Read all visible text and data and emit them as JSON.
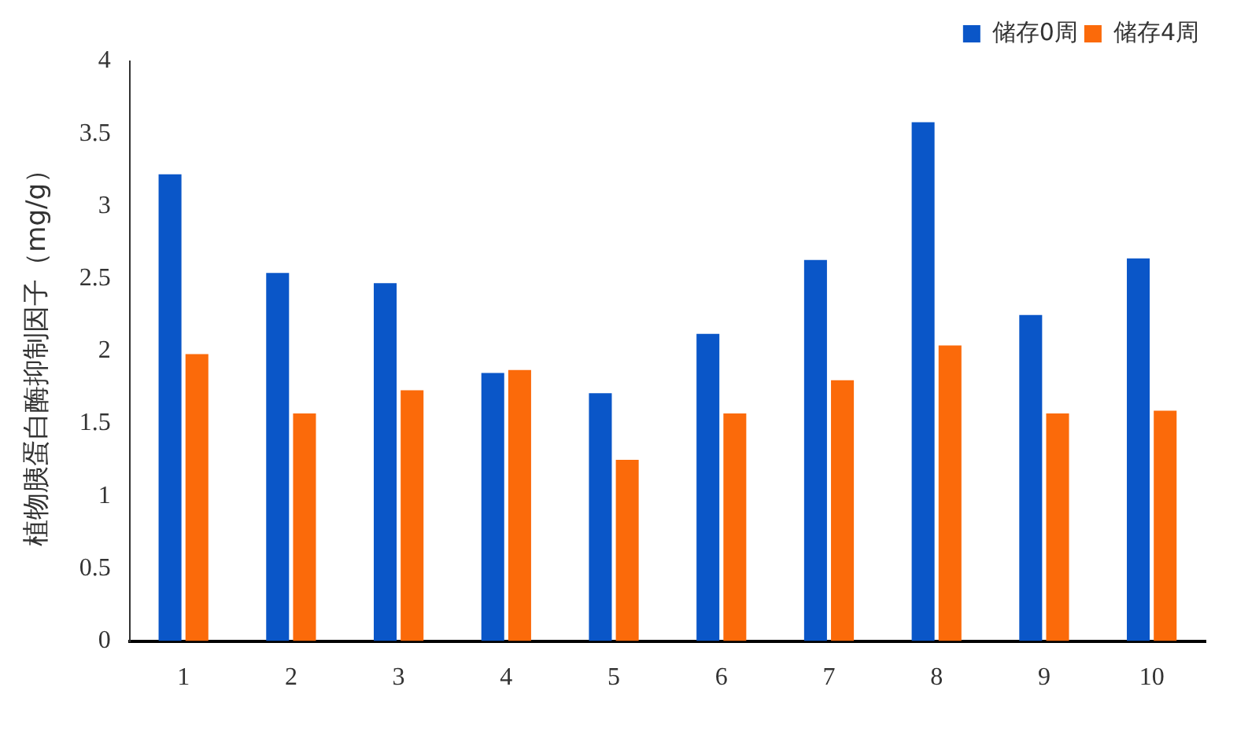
{
  "chart_data": {
    "type": "bar",
    "ylabel": "植物胰蛋白酶抑制因子（mg/g）",
    "categories": [
      "1",
      "2",
      "3",
      "4",
      "5",
      "6",
      "7",
      "8",
      "9",
      "10"
    ],
    "series": [
      {
        "name": "储存0周",
        "color": "#0a56c8",
        "values": [
          3.22,
          2.54,
          2.47,
          1.85,
          1.71,
          2.12,
          2.63,
          3.58,
          2.25,
          2.64
        ]
      },
      {
        "name": "储存4周",
        "color": "#fb6a0a",
        "values": [
          1.98,
          1.57,
          1.73,
          1.87,
          1.25,
          1.57,
          1.8,
          2.04,
          1.57,
          1.59
        ]
      }
    ],
    "ylim": [
      0,
      4
    ],
    "yticks": [
      0,
      0.5,
      1,
      1.5,
      2,
      2.5,
      3,
      3.5,
      4
    ],
    "grid": false,
    "legend": "top right"
  }
}
